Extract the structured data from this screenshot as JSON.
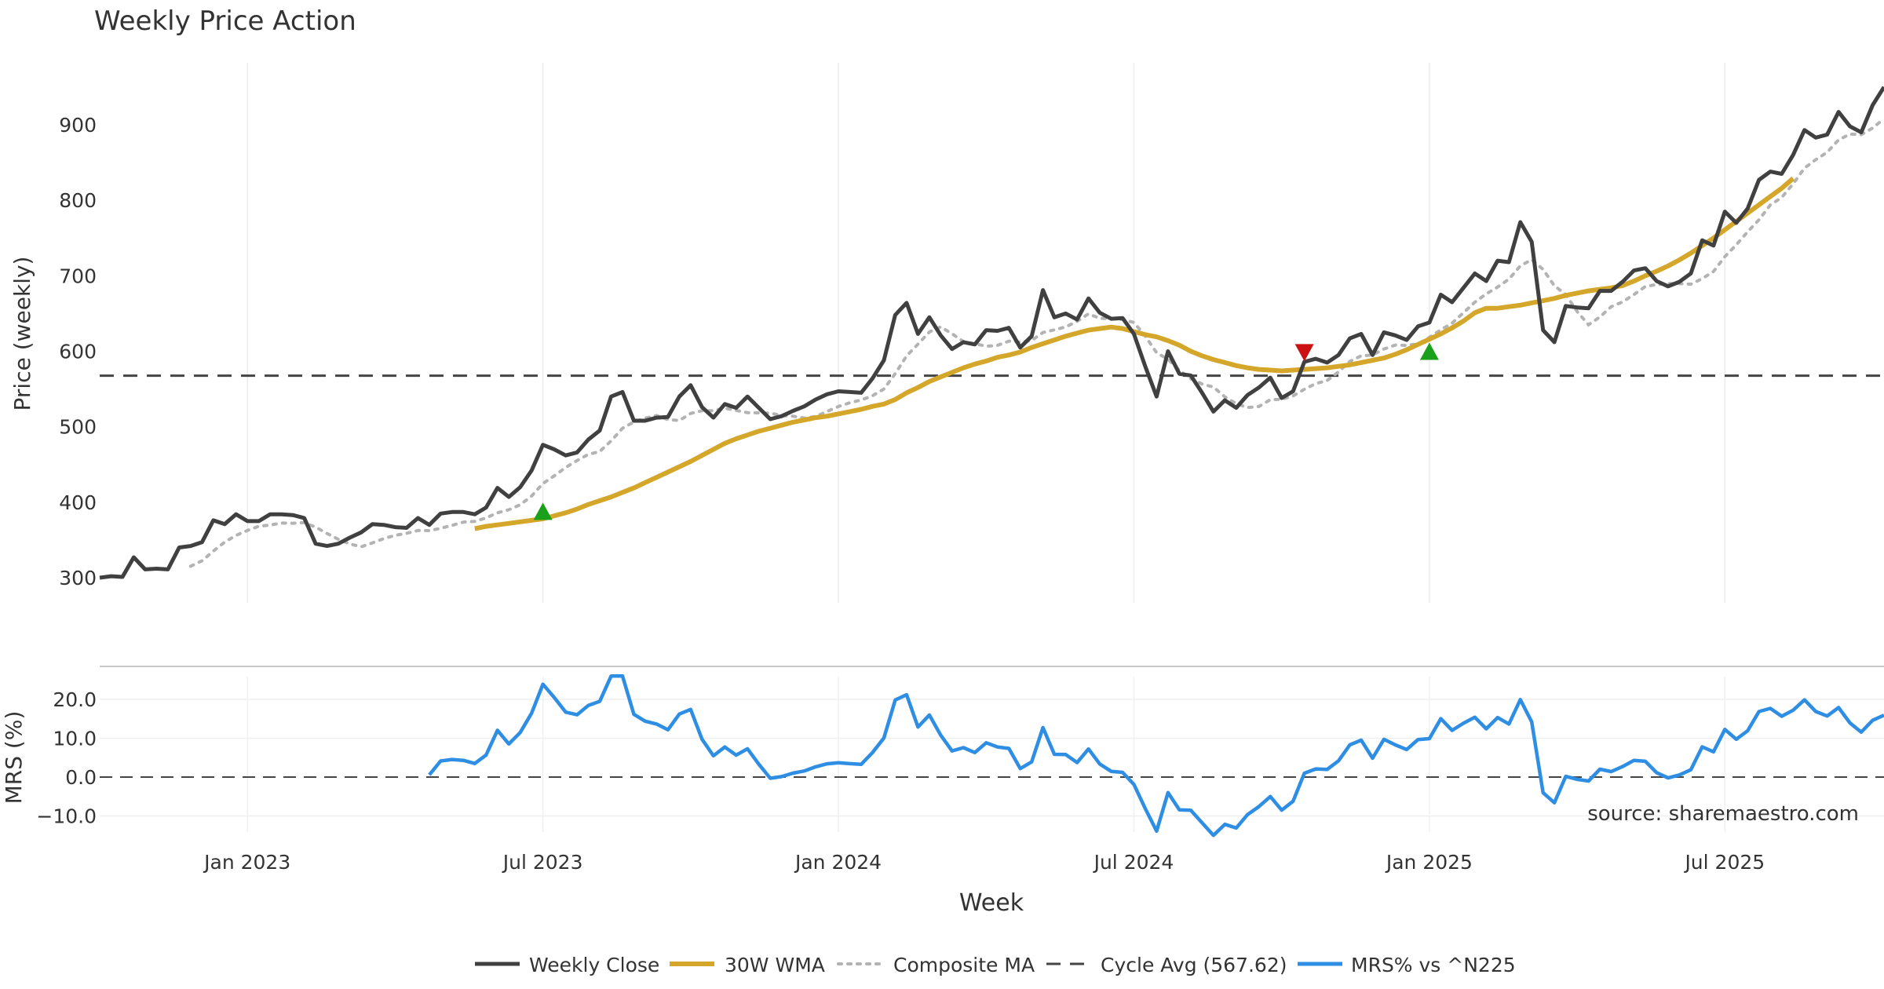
{
  "chart_data": {
    "type": "line",
    "title": "Weekly Price Action",
    "xlabel": "Week",
    "source": "source: sharemaestro.com",
    "x_ticks": [
      "Jan 2023",
      "Jul 2023",
      "Jan 2024",
      "Jul 2024",
      "Jan 2025",
      "Jul 2025"
    ],
    "colors": {
      "close": "#404040",
      "wma": "#d4a62a",
      "composite": "#b3b3b3",
      "cycle": "#444444",
      "mrs": "#2e8ee3",
      "buy": "#1aa01a",
      "sell": "#cc1111"
    },
    "price_panel": {
      "ylabel": "Price (weekly)",
      "ylim": [
        280,
        1000
      ],
      "y_ticks": [
        300,
        400,
        500,
        600,
        700,
        800,
        900
      ],
      "cycle_avg": 567.62,
      "close": [
        300,
        302,
        301,
        327,
        311,
        312,
        311,
        340,
        342,
        347,
        376,
        371,
        384,
        375,
        375,
        384,
        384,
        383,
        379,
        345,
        342,
        345,
        353,
        360,
        371,
        370,
        367,
        366,
        379,
        370,
        385,
        387,
        387,
        384,
        393,
        419,
        407,
        420,
        442,
        476,
        470,
        462,
        466,
        483,
        495,
        540,
        546,
        508,
        508,
        512,
        513,
        540,
        555,
        526,
        512,
        530,
        525,
        540,
        525,
        510,
        514,
        521,
        527,
        536,
        543,
        547,
        546,
        545,
        564,
        588,
        648,
        664,
        623,
        645,
        621,
        603,
        612,
        609,
        628,
        627,
        631,
        605,
        620,
        681,
        645,
        650,
        642,
        670,
        651,
        643,
        644,
        623,
        580,
        540,
        600,
        570,
        568,
        545,
        520,
        535,
        525,
        542,
        552,
        565,
        538,
        547,
        586,
        590,
        585,
        595,
        617,
        623,
        595,
        625,
        621,
        615,
        633,
        638,
        675,
        665,
        684,
        703,
        693,
        720,
        718,
        771,
        745,
        628,
        612,
        660,
        658,
        657,
        680,
        680,
        692,
        707,
        710,
        693,
        686,
        692,
        703,
        747,
        740,
        785,
        770,
        789,
        827,
        838,
        835,
        860,
        893,
        883,
        887,
        917,
        898,
        890,
        926,
        950
      ],
      "wma_start": 33,
      "wma": [
        365,
        368,
        370,
        372,
        374,
        376,
        378,
        382,
        386,
        391,
        397,
        402,
        407,
        413,
        419,
        426,
        433,
        440,
        447,
        454,
        462,
        470,
        478,
        484,
        489,
        494,
        498,
        502,
        506,
        509,
        512,
        514,
        517,
        520,
        523,
        527,
        530,
        536,
        545,
        552,
        560,
        566,
        572,
        578,
        583,
        587,
        592,
        595,
        599,
        605,
        610,
        615,
        620,
        624,
        628,
        630,
        632,
        630,
        626,
        622,
        619,
        614,
        608,
        600,
        594,
        589,
        585,
        581,
        578,
        576,
        575,
        574,
        575,
        576,
        577,
        578,
        580,
        582,
        585,
        588,
        591,
        596,
        602,
        609,
        616,
        623,
        631,
        640,
        651,
        657,
        657,
        659,
        661,
        664,
        667,
        670,
        674,
        677,
        680,
        682,
        684,
        687,
        693,
        700,
        706,
        713,
        721,
        730,
        740,
        750,
        761,
        772,
        783,
        794,
        805,
        816,
        829
      ]
    },
    "mrs_panel": {
      "ylabel": "MRS (%)",
      "ylim": [
        -16,
        28
      ],
      "y_ticks": [
        20,
        10,
        0,
        -10
      ],
      "y_tick_labels": [
        "20.0",
        "10.0",
        "0.0",
        "−10.0"
      ],
      "mrs_start": 29
    }
  },
  "legend": {
    "close": "Weekly Close",
    "wma": "30W WMA",
    "composite": "Composite MA",
    "cycle": "Cycle Avg (567.62)",
    "mrs": "MRS% vs ^N225"
  }
}
